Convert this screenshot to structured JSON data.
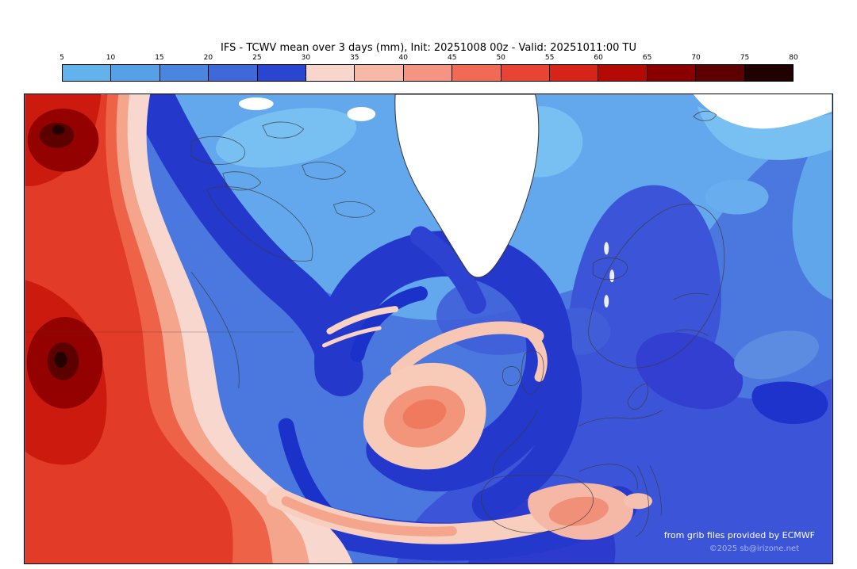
{
  "title": "IFS - TCWV mean over 3 days (mm), Init: 20251008 00z - Valid: 20251011:00 TU",
  "credits": {
    "line1": "from grib files provided by ECMWF",
    "line2": "©2025 sb@irizone.net"
  },
  "chart_data": {
    "type": "heatmap",
    "title": "IFS - TCWV mean over 3 days (mm), Init: 20251008 00z - Valid: 20251011:00 TU",
    "model": "IFS",
    "variable": "TCWV mean over 3 days",
    "units": "mm",
    "init_time": "20251008 00z",
    "valid_time": "20251011:00 TU",
    "colorbar": {
      "orientation": "horizontal",
      "ticks": [
        5,
        10,
        15,
        20,
        25,
        30,
        35,
        40,
        45,
        50,
        55,
        60,
        65,
        70,
        75,
        80
      ],
      "segment_colors": [
        "#62b2ec",
        "#55a0e6",
        "#4a86de",
        "#3f68d8",
        "#2a46d0",
        "#f8d6cc",
        "#f8b8a8",
        "#f69484",
        "#f06a56",
        "#e84434",
        "#d62418",
        "#b40a04",
        "#8a0000",
        "#5c0000",
        "#200000"
      ]
    },
    "map_features": [
      {
        "area": "subtropical North Atlantic along left edge",
        "value_mm": "45-80"
      },
      {
        "area": "top-left corner moisture maximum",
        "value_mm": "65-80"
      },
      {
        "area": "mid-left core off map edge",
        "value_mm": "65-80"
      },
      {
        "area": "curved moisture band spiraling between Iceland and the British Isles",
        "value_mm": "30-45"
      },
      {
        "area": "band along the southern edge toward Iberia and the western Mediterranean",
        "value_mm": "30-45"
      },
      {
        "area": "Greenland interior",
        "value_mm": "below scale (white)"
      },
      {
        "area": "Arctic / far north and top-right corner",
        "value_mm": "5-15"
      },
      {
        "area": "continental Europe and Scandinavia",
        "value_mm": "20-30"
      }
    ],
    "annotations": [
      "from grib files provided by ECMWF",
      "©2025 sb@irizone.net"
    ]
  }
}
